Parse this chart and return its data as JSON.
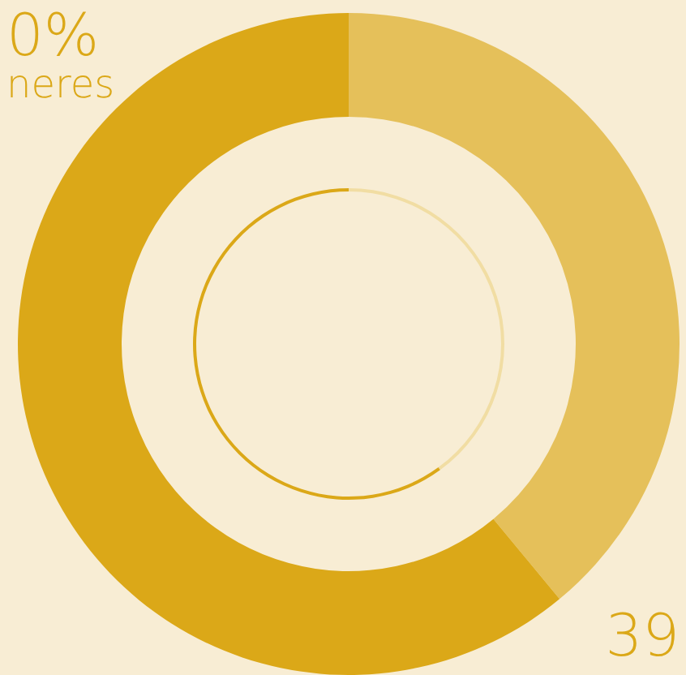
{
  "chart_data": [
    {
      "type": "donut",
      "categories": [
        null,
        null
      ],
      "values": [
        39,
        61
      ],
      "colors": [
        "#e5c05a",
        "#dba818"
      ],
      "annotations": [
        "0%",
        "neres",
        "39"
      ]
    },
    {
      "type": "donut",
      "categories": [
        null,
        null
      ],
      "values": [
        40,
        60
      ],
      "colors": [
        "#f1dda3",
        "#dba818"
      ]
    }
  ]
}
